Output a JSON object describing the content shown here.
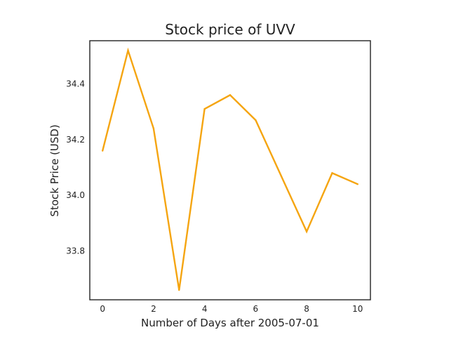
{
  "chart_data": {
    "type": "line",
    "title": "Stock price of UVV",
    "xlabel": "Number of Days after 2005-07-01",
    "ylabel": "Stock Price (USD)",
    "xlim": [
      -0.5,
      10.5
    ],
    "ylim": [
      33.625,
      34.555
    ],
    "x_ticks": [
      "0",
      "2",
      "4",
      "6",
      "8",
      "10"
    ],
    "y_ticks": [
      "33.8",
      "34.0",
      "34.2",
      "34.4"
    ],
    "grid": false,
    "line_color": "#f5a511",
    "series": [
      {
        "x": [
          0,
          1,
          2,
          3,
          4,
          5,
          6,
          7,
          8,
          9,
          10
        ],
        "values": [
          34.16,
          34.52,
          34.24,
          33.66,
          34.31,
          34.36,
          34.27,
          34.07,
          33.87,
          34.08,
          34.04
        ]
      }
    ]
  }
}
